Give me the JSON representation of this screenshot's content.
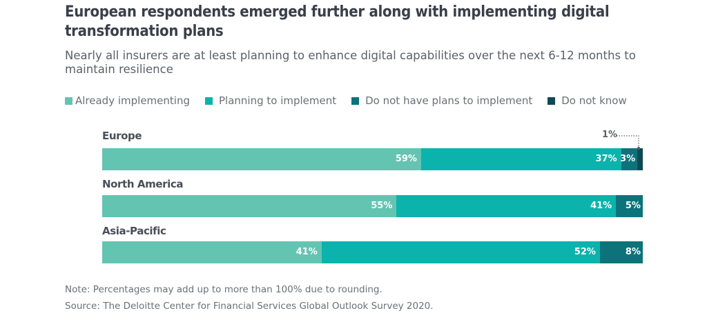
{
  "header": {
    "title": "European respondents emerged further along with implementing digital transformation plans",
    "subtitle": "Nearly all insurers are at least planning to enhance digital capabilities over the next 6-12 months to maintain resilience"
  },
  "colors": {
    "already": "#63c4b2",
    "planning": "#0bb3ac",
    "no_plans": "#0d737a",
    "dont_know": "#0d4a52"
  },
  "chart_data": {
    "type": "bar",
    "orientation": "horizontal",
    "stacked": true,
    "title": "European respondents emerged further along with implementing digital transformation plans",
    "subtitle": "Nearly all insurers are at least planning to enhance digital capabilities over the next 6-12 months to maintain resilience",
    "xlabel": "",
    "ylabel": "",
    "unit": "%",
    "legend_position": "top-left",
    "grid": false,
    "categories": [
      "Europe",
      "North America",
      "Asia-Pacific"
    ],
    "series": [
      {
        "name": "Already implementing",
        "values": [
          59,
          55,
          41
        ]
      },
      {
        "name": "Planning to implement",
        "values": [
          37,
          41,
          52
        ]
      },
      {
        "name": "Do not have plans to implement",
        "values": [
          3,
          5,
          8
        ]
      },
      {
        "name": "Do not know",
        "values": [
          1,
          0,
          0
        ]
      }
    ],
    "data_labels": [
      [
        "59%",
        "37%",
        "3%",
        "1%"
      ],
      [
        "55%",
        "41%",
        "5%",
        ""
      ],
      [
        "41%",
        "52%",
        "8%",
        ""
      ]
    ],
    "annotations": [
      "1%"
    ]
  },
  "legend": [
    {
      "label": "Already implementing"
    },
    {
      "label": "Planning to implement"
    },
    {
      "label": "Do not have plans to implement"
    },
    {
      "label": "Do not know"
    }
  ],
  "callout": {
    "label": "1%"
  },
  "footer": {
    "note": "Note: Percentages may add up to more than 100% due to rounding.",
    "source": "Source: The Deloitte Center for Financial Services Global Outlook Survey 2020."
  }
}
